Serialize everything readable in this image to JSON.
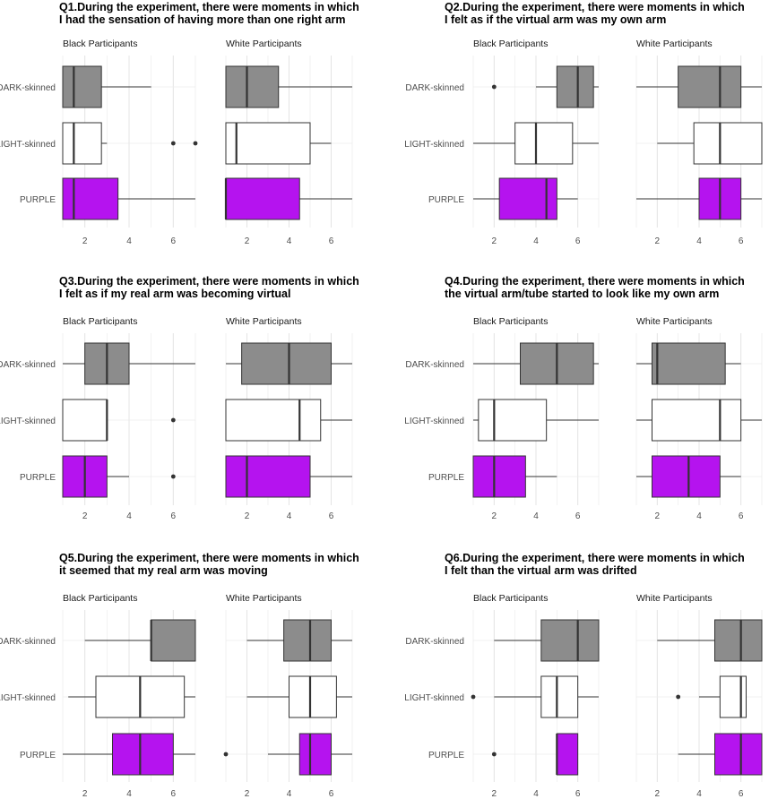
{
  "colors": {
    "dark": "#8c8c8c",
    "light": "#ffffff",
    "purple": "#b513ef",
    "stroke": "#333333",
    "grid": "#ebebeb"
  },
  "chart_data": [
    {
      "type": "boxplot",
      "id": "Q1",
      "title": "Q1.During the experiment, there were moments in which",
      "subtitle": "I had the sensation of having more than one right arm",
      "categories": [
        "DARK-skinned",
        "LIGHT-skinned",
        "PURPLE"
      ],
      "xlim": [
        1,
        7
      ],
      "xticks": [
        2,
        4,
        6
      ],
      "facets": [
        {
          "name": "Black Participants",
          "boxes": [
            {
              "category": "DARK-skinned",
              "whisker_low": 1,
              "q1": 1,
              "median": 1.5,
              "q3": 2.75,
              "whisker_high": 5,
              "outliers": []
            },
            {
              "category": "LIGHT-skinned",
              "whisker_low": 1,
              "q1": 1,
              "median": 1.5,
              "q3": 2.75,
              "whisker_high": 3,
              "outliers": [
                6,
                7
              ]
            },
            {
              "category": "PURPLE",
              "whisker_low": 1,
              "q1": 1,
              "median": 1.5,
              "q3": 3.5,
              "whisker_high": 7,
              "outliers": []
            }
          ]
        },
        {
          "name": "White Participants",
          "boxes": [
            {
              "category": "DARK-skinned",
              "whisker_low": 1,
              "q1": 1,
              "median": 2,
              "q3": 3.5,
              "whisker_high": 7,
              "outliers": []
            },
            {
              "category": "LIGHT-skinned",
              "whisker_low": 1,
              "q1": 1,
              "median": 1.5,
              "q3": 5,
              "whisker_high": 6,
              "outliers": []
            },
            {
              "category": "PURPLE",
              "whisker_low": 1,
              "q1": 1,
              "median": 1,
              "q3": 4.5,
              "whisker_high": 7,
              "outliers": []
            }
          ]
        }
      ]
    },
    {
      "type": "boxplot",
      "id": "Q2",
      "title": "Q2.During the experiment, there were moments in which",
      "subtitle": "I felt as if the virtual arm was my own arm",
      "categories": [
        "DARK-skinned",
        "LIGHT-skinned",
        "PURPLE"
      ],
      "xlim": [
        1,
        7
      ],
      "xticks": [
        2,
        4,
        6
      ],
      "facets": [
        {
          "name": "Black Participants",
          "boxes": [
            {
              "category": "DARK-skinned",
              "whisker_low": 4,
              "q1": 5,
              "median": 6,
              "q3": 6.75,
              "whisker_high": 7,
              "outliers": [
                2
              ]
            },
            {
              "category": "LIGHT-skinned",
              "whisker_low": 1,
              "q1": 3,
              "median": 4,
              "q3": 5.75,
              "whisker_high": 7,
              "outliers": []
            },
            {
              "category": "PURPLE",
              "whisker_low": 1,
              "q1": 2.25,
              "median": 4.5,
              "q3": 5,
              "whisker_high": 6,
              "outliers": []
            }
          ]
        },
        {
          "name": "White Participants",
          "boxes": [
            {
              "category": "DARK-skinned",
              "whisker_low": 1,
              "q1": 3,
              "median": 5,
              "q3": 6,
              "whisker_high": 7,
              "outliers": []
            },
            {
              "category": "LIGHT-skinned",
              "whisker_low": 2,
              "q1": 3.75,
              "median": 5,
              "q3": 7,
              "whisker_high": 7,
              "outliers": []
            },
            {
              "category": "PURPLE",
              "whisker_low": 1,
              "q1": 4,
              "median": 5,
              "q3": 6,
              "whisker_high": 7,
              "outliers": []
            }
          ]
        }
      ]
    },
    {
      "type": "boxplot",
      "id": "Q3",
      "title": "Q3.During the experiment, there were moments in which",
      "subtitle": "I felt as if my real arm was becoming virtual",
      "categories": [
        "DARK-skinned",
        "LIGHT-skinned",
        "PURPLE"
      ],
      "xlim": [
        1,
        7
      ],
      "xticks": [
        2,
        4,
        6
      ],
      "facets": [
        {
          "name": "Black Participants",
          "boxes": [
            {
              "category": "DARK-skinned",
              "whisker_low": 1,
              "q1": 2,
              "median": 3,
              "q3": 4,
              "whisker_high": 7,
              "outliers": []
            },
            {
              "category": "LIGHT-skinned",
              "whisker_low": 1,
              "q1": 1,
              "median": 3,
              "q3": 3,
              "whisker_high": 3,
              "outliers": [
                6
              ]
            },
            {
              "category": "PURPLE",
              "whisker_low": 1,
              "q1": 1,
              "median": 2,
              "q3": 3,
              "whisker_high": 4,
              "outliers": [
                6
              ]
            }
          ]
        },
        {
          "name": "White Participants",
          "boxes": [
            {
              "category": "DARK-skinned",
              "whisker_low": 1,
              "q1": 1.75,
              "median": 4,
              "q3": 6,
              "whisker_high": 7,
              "outliers": []
            },
            {
              "category": "LIGHT-skinned",
              "whisker_low": 1,
              "q1": 1,
              "median": 4.5,
              "q3": 5.5,
              "whisker_high": 7,
              "outliers": []
            },
            {
              "category": "PURPLE",
              "whisker_low": 1,
              "q1": 1,
              "median": 2,
              "q3": 5,
              "whisker_high": 7,
              "outliers": []
            }
          ]
        }
      ]
    },
    {
      "type": "boxplot",
      "id": "Q4",
      "title": "Q4.During the experiment, there were moments in which",
      "subtitle": "the virtual arm/tube started to look like my own arm",
      "categories": [
        "DARK-skinned",
        "LIGHT-skinned",
        "PURPLE"
      ],
      "xlim": [
        1,
        7
      ],
      "xticks": [
        2,
        4,
        6
      ],
      "facets": [
        {
          "name": "Black Participants",
          "boxes": [
            {
              "category": "DARK-skinned",
              "whisker_low": 1,
              "q1": 3.25,
              "median": 5,
              "q3": 6.75,
              "whisker_high": 7,
              "outliers": []
            },
            {
              "category": "LIGHT-skinned",
              "whisker_low": 1,
              "q1": 1.25,
              "median": 2,
              "q3": 4.5,
              "whisker_high": 7,
              "outliers": []
            },
            {
              "category": "PURPLE",
              "whisker_low": 1,
              "q1": 1,
              "median": 2,
              "q3": 3.5,
              "whisker_high": 5,
              "outliers": []
            }
          ]
        },
        {
          "name": "White Participants",
          "boxes": [
            {
              "category": "DARK-skinned",
              "whisker_low": 1,
              "q1": 1.75,
              "median": 2,
              "q3": 5.25,
              "whisker_high": 6,
              "outliers": []
            },
            {
              "category": "LIGHT-skinned",
              "whisker_low": 1,
              "q1": 1.75,
              "median": 5,
              "q3": 6,
              "whisker_high": 7,
              "outliers": []
            },
            {
              "category": "PURPLE",
              "whisker_low": 1,
              "q1": 1.75,
              "median": 3.5,
              "q3": 5,
              "whisker_high": 6,
              "outliers": []
            }
          ]
        }
      ]
    },
    {
      "type": "boxplot",
      "id": "Q5",
      "title": "Q5.During the experiment, there were moments in which",
      "subtitle": "it seemed that my real arm was moving",
      "categories": [
        "DARK-skinned",
        "LIGHT-skinned",
        "PURPLE"
      ],
      "xlim": [
        1,
        7
      ],
      "xticks": [
        2,
        4,
        6
      ],
      "facets": [
        {
          "name": "Black Participants",
          "boxes": [
            {
              "category": "DARK-skinned",
              "whisker_low": 2,
              "q1": 5,
              "median": 5,
              "q3": 7,
              "whisker_high": 7,
              "outliers": []
            },
            {
              "category": "LIGHT-skinned",
              "whisker_low": 1.25,
              "q1": 2.5,
              "median": 4.5,
              "q3": 6.5,
              "whisker_high": 7,
              "outliers": []
            },
            {
              "category": "PURPLE",
              "whisker_low": 1,
              "q1": 3.25,
              "median": 4.5,
              "q3": 6,
              "whisker_high": 7,
              "outliers": []
            }
          ]
        },
        {
          "name": "White Participants",
          "boxes": [
            {
              "category": "DARK-skinned",
              "whisker_low": 2,
              "q1": 3.75,
              "median": 5,
              "q3": 6,
              "whisker_high": 7,
              "outliers": []
            },
            {
              "category": "LIGHT-skinned",
              "whisker_low": 2,
              "q1": 4,
              "median": 5,
              "q3": 6.25,
              "whisker_high": 7,
              "outliers": []
            },
            {
              "category": "PURPLE",
              "whisker_low": 3,
              "q1": 4.5,
              "median": 5,
              "q3": 6,
              "whisker_high": 7,
              "outliers": [
                1
              ]
            }
          ]
        }
      ]
    },
    {
      "type": "boxplot",
      "id": "Q6",
      "title": "Q6.During the experiment, there were moments in which",
      "subtitle": "I felt than the virtual arm was drifted",
      "categories": [
        "DARK-skinned",
        "LIGHT-skinned",
        "PURPLE"
      ],
      "xlim": [
        1,
        7
      ],
      "xticks": [
        2,
        4,
        6
      ],
      "facets": [
        {
          "name": "Black Participants",
          "boxes": [
            {
              "category": "DARK-skinned",
              "whisker_low": 2,
              "q1": 4.25,
              "median": 6,
              "q3": 7,
              "whisker_high": 7,
              "outliers": []
            },
            {
              "category": "LIGHT-skinned",
              "whisker_low": 2,
              "q1": 4.25,
              "median": 5,
              "q3": 6,
              "whisker_high": 7,
              "outliers": [
                1
              ]
            },
            {
              "category": "PURPLE",
              "whisker_low": 5,
              "q1": 5,
              "median": 5,
              "q3": 6,
              "whisker_high": 6,
              "outliers": [
                2
              ]
            }
          ]
        },
        {
          "name": "White Participants",
          "boxes": [
            {
              "category": "DARK-skinned",
              "whisker_low": 2,
              "q1": 4.75,
              "median": 6,
              "q3": 7,
              "whisker_high": 7,
              "outliers": []
            },
            {
              "category": "LIGHT-skinned",
              "whisker_low": 4,
              "q1": 5,
              "median": 6,
              "q3": 6.25,
              "whisker_high": 6.25,
              "outliers": [
                3
              ]
            },
            {
              "category": "PURPLE",
              "whisker_low": 3,
              "q1": 4.75,
              "median": 6,
              "q3": 7,
              "whisker_high": 7,
              "outliers": []
            }
          ]
        }
      ]
    }
  ]
}
